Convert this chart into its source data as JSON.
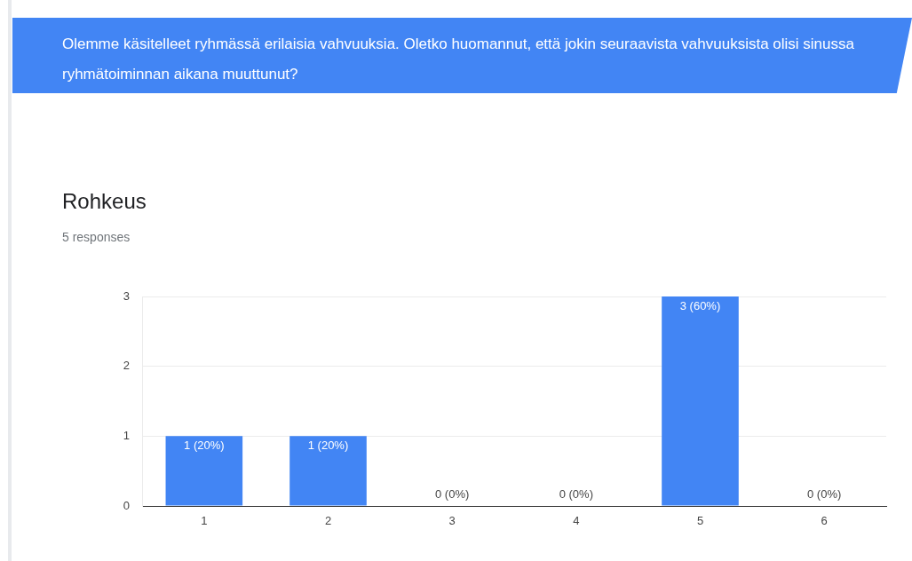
{
  "chart_data": {
    "type": "bar",
    "title": "Rohkeus",
    "subtitle": "5 responses",
    "annotations": [
      "Olemme käsitelleet ryhmässä erilaisia vahvuuksia. Oletko huomannut, että jokin seuraavista vahvuuksista olisi sinussa ryhmätoiminnan aikana muuttunut?"
    ],
    "categories": [
      "1",
      "2",
      "3",
      "4",
      "5",
      "6"
    ],
    "values": [
      1,
      1,
      0,
      0,
      3,
      0
    ],
    "value_labels": [
      "1 (20%)",
      "1 (20%)",
      "0 (0%)",
      "0 (0%)",
      "3 (60%)",
      "0 (0%)"
    ],
    "color": "#4285f4",
    "ylim": [
      0,
      3
    ],
    "yticks": [
      0,
      1,
      2,
      3
    ],
    "grid": "y",
    "legend": false
  }
}
